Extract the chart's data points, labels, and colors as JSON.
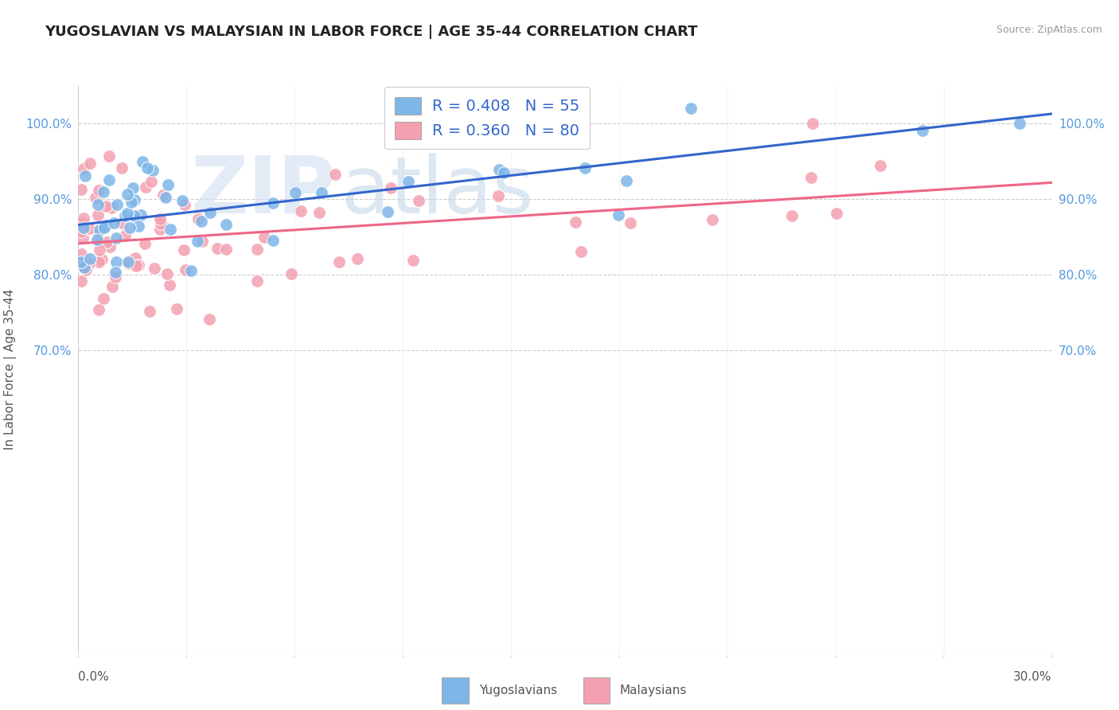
{
  "title": "YUGOSLAVIAN VS MALAYSIAN IN LABOR FORCE | AGE 35-44 CORRELATION CHART",
  "source": "Source: ZipAtlas.com",
  "ylabel": "In Labor Force | Age 35-44",
  "xlim": [
    0.0,
    0.3
  ],
  "ylim": [
    0.3,
    1.05
  ],
  "ytick_positions": [
    0.7,
    0.8,
    0.9,
    1.0
  ],
  "ytick_labels": [
    "70.0%",
    "80.0%",
    "90.0%",
    "100.0%"
  ],
  "color_blue": "#7EB6E8",
  "color_pink": "#F4A0B0",
  "trendline_blue": "#3366CC",
  "trendline_pink": "#EE6688",
  "legend_text1": "R = 0.408   N = 55",
  "legend_text2": "R = 0.360   N = 80",
  "legend_label1": "Yugoslavians",
  "legend_label2": "Malaysians",
  "watermark_zip": "ZIP",
  "watermark_atlas": "atlas"
}
